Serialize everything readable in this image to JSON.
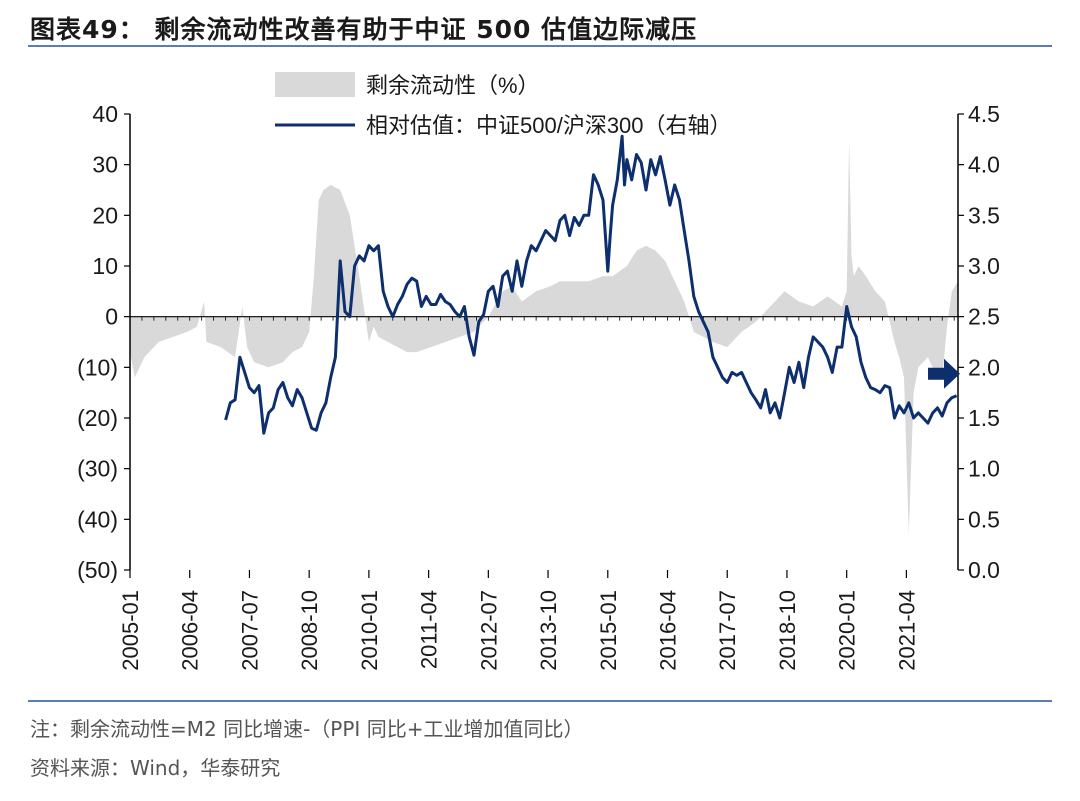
{
  "title": "图表49： 剩余流动性改善有助于中证 500 估值边际减压",
  "note": "注：剩余流动性=M2 同比增速-（PPI 同比+工业增加值同比）",
  "source": "资料来源：Wind，华泰研究",
  "colors": {
    "liquidity_area": "#d9d9d9",
    "valuation_line": "#0d2f6e",
    "rule": "#5b7fa8",
    "arrow": "#0d2f6e"
  },
  "chart_data": {
    "type": "area+line",
    "legend": [
      "剩余流动性（%）",
      "相对估值：中证500/沪深300（右轴）"
    ],
    "legend_position": "top-center",
    "x_tick_labels": [
      "2005-01",
      "2006-04",
      "2007-07",
      "2008-10",
      "2010-01",
      "2011-04",
      "2012-07",
      "2013-10",
      "2015-01",
      "2016-04",
      "2017-07",
      "2018-10",
      "2020-01",
      "2021-04"
    ],
    "x_range": [
      2005.0,
      2022.33
    ],
    "y_left": {
      "ylim": [
        -50,
        40
      ],
      "ticks": [
        40,
        30,
        20,
        10,
        0,
        -10,
        -20,
        -30,
        -40,
        -50
      ],
      "tick_labels": [
        "40",
        "30",
        "20",
        "10",
        "0",
        "(10)",
        "(20)",
        "(30)",
        "(40)",
        "(50)"
      ]
    },
    "y_right": {
      "ylim": [
        0.0,
        4.5
      ],
      "ticks": [
        4.5,
        4.0,
        3.5,
        3.0,
        2.5,
        2.0,
        1.5,
        1.0,
        0.5,
        0.0
      ],
      "tick_labels": [
        "4.5",
        "4.0",
        "3.5",
        "3.0",
        "2.5",
        "2.0",
        "1.5",
        "1.0",
        "0.5",
        "0.0"
      ]
    },
    "grid": false,
    "series": [
      {
        "name": "剩余流动性（%）",
        "type": "area",
        "axis": "left",
        "x": [
          2005.0,
          2005.1,
          2005.3,
          2005.6,
          2005.9,
          2006.2,
          2006.4,
          2006.55,
          2006.6,
          2006.9,
          2007.2,
          2007.35,
          2007.45,
          2007.6,
          2007.9,
          2008.2,
          2008.4,
          2008.6,
          2008.75,
          2008.85,
          2008.95,
          2009.05,
          2009.2,
          2009.4,
          2009.6,
          2009.8,
          2010.0,
          2010.1,
          2010.2,
          2010.4,
          2010.6,
          2010.8,
          2011.0,
          2011.3,
          2011.6,
          2011.9,
          2012.2,
          2012.5,
          2012.8,
          2013.0,
          2013.2,
          2013.5,
          2013.8,
          2014.0,
          2014.3,
          2014.6,
          2014.9,
          2015.1,
          2015.4,
          2015.6,
          2015.8,
          2016.0,
          2016.2,
          2016.4,
          2016.6,
          2016.8,
          2017.0,
          2017.2,
          2017.5,
          2017.8,
          2018.1,
          2018.4,
          2018.7,
          2019.0,
          2019.3,
          2019.6,
          2019.9,
          2020.0,
          2020.05,
          2020.1,
          2020.15,
          2020.25,
          2020.4,
          2020.6,
          2020.8,
          2021.0,
          2021.1,
          2021.2,
          2021.3,
          2021.4,
          2021.5,
          2021.7,
          2021.9,
          2022.0,
          2022.1,
          2022.2,
          2022.33
        ],
        "values": [
          -7,
          -12,
          -8,
          -5,
          -4,
          -3,
          -2,
          3,
          -5,
          -6,
          -8,
          2,
          -6,
          -9,
          -10,
          -9,
          -7,
          -6,
          -3,
          8,
          23,
          25,
          26,
          25,
          20,
          8,
          -5,
          -2,
          -4,
          -5,
          -6,
          -7,
          -7,
          -6,
          -5,
          -4,
          -3,
          0,
          5,
          6,
          3,
          5,
          6,
          7,
          7,
          7,
          8,
          8,
          10,
          13,
          14,
          13,
          11,
          7,
          3,
          -3,
          -4,
          -5,
          -6,
          -3,
          -1,
          2,
          5,
          3,
          2,
          4,
          2,
          5,
          35,
          12,
          8,
          10,
          8,
          5,
          3,
          -5,
          -8,
          -12,
          -43,
          -15,
          -10,
          -8,
          -12,
          -12,
          -2,
          5,
          7
        ]
      },
      {
        "name": "相对估值：中证500/沪深300（右轴）",
        "type": "line",
        "axis": "right",
        "x": [
          2007.0,
          2007.1,
          2007.2,
          2007.3,
          2007.4,
          2007.5,
          2007.6,
          2007.7,
          2007.8,
          2007.9,
          2008.0,
          2008.1,
          2008.2,
          2008.3,
          2008.4,
          2008.5,
          2008.6,
          2008.7,
          2008.8,
          2008.9,
          2009.0,
          2009.1,
          2009.2,
          2009.3,
          2009.4,
          2009.5,
          2009.6,
          2009.7,
          2009.8,
          2009.9,
          2010.0,
          2010.1,
          2010.2,
          2010.3,
          2010.4,
          2010.5,
          2010.6,
          2010.7,
          2010.8,
          2010.9,
          2011.0,
          2011.1,
          2011.2,
          2011.3,
          2011.4,
          2011.5,
          2011.6,
          2011.7,
          2011.8,
          2011.9,
          2012.0,
          2012.1,
          2012.2,
          2012.3,
          2012.4,
          2012.5,
          2012.6,
          2012.7,
          2012.8,
          2012.9,
          2013.0,
          2013.1,
          2013.2,
          2013.3,
          2013.4,
          2013.5,
          2013.6,
          2013.7,
          2013.8,
          2013.9,
          2014.0,
          2014.1,
          2014.2,
          2014.3,
          2014.4,
          2014.5,
          2014.6,
          2014.7,
          2014.8,
          2014.9,
          2015.0,
          2015.05,
          2015.1,
          2015.2,
          2015.3,
          2015.35,
          2015.4,
          2015.5,
          2015.6,
          2015.7,
          2015.8,
          2015.9,
          2016.0,
          2016.1,
          2016.2,
          2016.3,
          2016.4,
          2016.5,
          2016.6,
          2016.7,
          2016.8,
          2016.9,
          2017.0,
          2017.1,
          2017.2,
          2017.3,
          2017.4,
          2017.5,
          2017.6,
          2017.7,
          2017.8,
          2017.9,
          2018.0,
          2018.1,
          2018.2,
          2018.3,
          2018.4,
          2018.5,
          2018.6,
          2018.7,
          2018.8,
          2018.9,
          2019.0,
          2019.1,
          2019.2,
          2019.3,
          2019.4,
          2019.5,
          2019.6,
          2019.7,
          2019.8,
          2019.9,
          2020.0,
          2020.1,
          2020.2,
          2020.3,
          2020.4,
          2020.5,
          2020.6,
          2020.7,
          2020.8,
          2020.9,
          2021.0,
          2021.1,
          2021.2,
          2021.3,
          2021.4,
          2021.5,
          2021.6,
          2021.7,
          2021.8,
          2021.9,
          2022.0,
          2022.1,
          2022.2,
          2022.3
        ],
        "values": [
          1.48,
          1.65,
          1.68,
          2.1,
          1.95,
          1.8,
          1.75,
          1.82,
          1.35,
          1.55,
          1.6,
          1.78,
          1.85,
          1.7,
          1.62,
          1.78,
          1.7,
          1.55,
          1.4,
          1.38,
          1.55,
          1.65,
          1.9,
          2.1,
          3.05,
          2.55,
          2.5,
          3.0,
          3.1,
          3.05,
          3.2,
          3.15,
          3.2,
          2.75,
          2.6,
          2.5,
          2.62,
          2.7,
          2.82,
          2.88,
          2.85,
          2.6,
          2.7,
          2.62,
          2.62,
          2.72,
          2.65,
          2.62,
          2.55,
          2.5,
          2.6,
          2.3,
          2.12,
          2.45,
          2.52,
          2.75,
          2.8,
          2.6,
          2.9,
          2.95,
          2.75,
          3.05,
          2.8,
          3.05,
          3.2,
          3.15,
          3.25,
          3.35,
          3.3,
          3.25,
          3.45,
          3.5,
          3.3,
          3.48,
          3.4,
          3.5,
          3.5,
          3.9,
          3.8,
          3.65,
          2.95,
          3.3,
          3.6,
          3.85,
          4.28,
          3.8,
          4.05,
          3.85,
          4.1,
          4.02,
          3.75,
          4.05,
          3.9,
          4.08,
          3.85,
          3.6,
          3.8,
          3.65,
          3.35,
          3.05,
          2.7,
          2.55,
          2.45,
          2.35,
          2.1,
          2.0,
          1.9,
          1.85,
          1.95,
          1.92,
          1.95,
          1.85,
          1.75,
          1.68,
          1.6,
          1.78,
          1.55,
          1.65,
          1.5,
          1.75,
          2.0,
          1.85,
          2.05,
          1.8,
          2.1,
          2.3,
          2.25,
          2.2,
          2.1,
          1.95,
          2.2,
          2.2,
          2.6,
          2.4,
          2.3,
          2.05,
          1.9,
          1.8,
          1.78,
          1.75,
          1.82,
          1.8,
          1.5,
          1.62,
          1.55,
          1.65,
          1.5,
          1.55,
          1.5,
          1.45,
          1.55,
          1.6,
          1.52,
          1.65,
          1.7,
          1.72
        ]
      }
    ],
    "annotation": "right-pointing arrow near latest valuation value"
  }
}
